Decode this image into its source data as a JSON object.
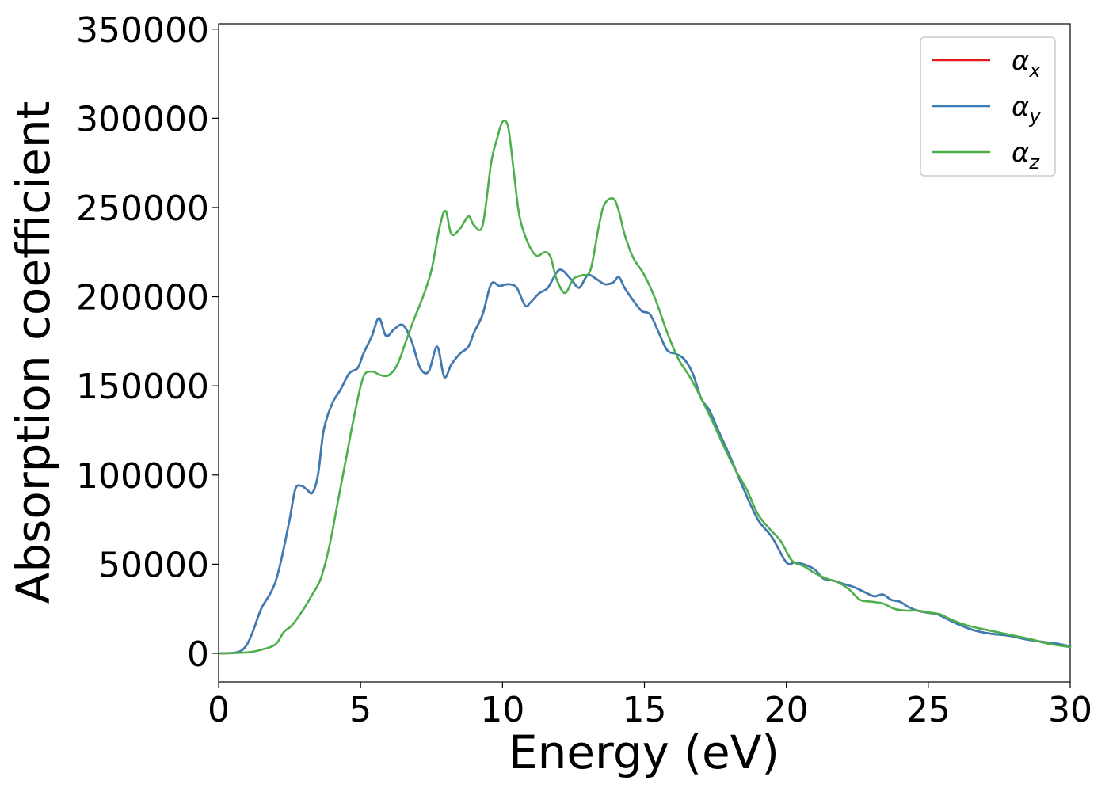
{
  "chart_data": {
    "type": "line",
    "title": "",
    "xlabel": "Energy (eV)",
    "ylabel": "Absorption coefficient",
    "xlim": [
      0,
      30
    ],
    "ylim": [
      -16000,
      353000
    ],
    "xticks": [
      0,
      5,
      10,
      15,
      20,
      25,
      30
    ],
    "yticks": [
      0,
      50000,
      100000,
      150000,
      200000,
      250000,
      300000,
      350000
    ],
    "grid": false,
    "legend_position": "top-right",
    "series": [
      {
        "name": "α",
        "subscript": "x",
        "color": "#e41a1c",
        "x": [
          0,
          0.5,
          0.8,
          1.0,
          1.2,
          1.5,
          1.8,
          2.0,
          2.2,
          2.5,
          2.7,
          2.9,
          3.1,
          3.3,
          3.5,
          3.7,
          4.0,
          4.3,
          4.6,
          4.9,
          5.1,
          5.4,
          5.65,
          5.9,
          6.2,
          6.5,
          6.8,
          7.1,
          7.4,
          7.7,
          7.95,
          8.2,
          8.5,
          8.8,
          9.0,
          9.3,
          9.6,
          9.9,
          10.2,
          10.5,
          10.8,
          11.0,
          11.3,
          11.6,
          12.0,
          12.4,
          12.7,
          13.0,
          13.3,
          13.6,
          13.9,
          14.1,
          14.3,
          14.6,
          14.9,
          15.2,
          15.5,
          15.8,
          16.1,
          16.4,
          16.7,
          17.0,
          17.3,
          17.6,
          18.0,
          18.5,
          19.0,
          19.5,
          20.0,
          20.3,
          20.6,
          21.0,
          21.3,
          21.6,
          22.0,
          22.4,
          22.8,
          23.1,
          23.4,
          23.7,
          24.0,
          24.3,
          24.6,
          24.9,
          25.3,
          25.7,
          26.1,
          26.6,
          27.2,
          27.8,
          28.4,
          29.0,
          29.5,
          30.0
        ],
        "values": [
          0,
          200,
          1500,
          5000,
          12000,
          25000,
          33000,
          40000,
          52000,
          75000,
          92000,
          94000,
          92000,
          90000,
          100000,
          125000,
          140000,
          148000,
          157000,
          160000,
          168000,
          178000,
          188000,
          178000,
          182000,
          184000,
          175000,
          160000,
          158000,
          172000,
          155000,
          162000,
          168000,
          172000,
          180000,
          190000,
          207000,
          206000,
          207000,
          205000,
          195000,
          197000,
          202000,
          205000,
          215000,
          210000,
          205000,
          212000,
          210000,
          207000,
          208000,
          211000,
          205000,
          198000,
          192000,
          190000,
          180000,
          170000,
          168000,
          165000,
          157000,
          143000,
          136000,
          125000,
          111000,
          92000,
          75000,
          65000,
          51000,
          51000,
          50000,
          47000,
          42000,
          41000,
          39000,
          37000,
          34000,
          32000,
          33000,
          30000,
          29000,
          26000,
          24000,
          23000,
          22000,
          19000,
          16000,
          13000,
          11000,
          10000,
          8000,
          6500,
          5500,
          4000
        ]
      },
      {
        "name": "α",
        "subscript": "y",
        "color": "#377eb8",
        "x": [
          0,
          0.5,
          0.8,
          1.0,
          1.2,
          1.5,
          1.8,
          2.0,
          2.2,
          2.5,
          2.7,
          2.9,
          3.1,
          3.3,
          3.5,
          3.7,
          4.0,
          4.3,
          4.6,
          4.9,
          5.1,
          5.4,
          5.65,
          5.9,
          6.2,
          6.5,
          6.8,
          7.1,
          7.4,
          7.7,
          7.95,
          8.2,
          8.5,
          8.8,
          9.0,
          9.3,
          9.6,
          9.9,
          10.2,
          10.5,
          10.8,
          11.0,
          11.3,
          11.6,
          12.0,
          12.4,
          12.7,
          13.0,
          13.3,
          13.6,
          13.9,
          14.1,
          14.3,
          14.6,
          14.9,
          15.2,
          15.5,
          15.8,
          16.1,
          16.4,
          16.7,
          17.0,
          17.3,
          17.6,
          18.0,
          18.5,
          19.0,
          19.5,
          20.0,
          20.3,
          20.6,
          21.0,
          21.3,
          21.6,
          22.0,
          22.4,
          22.8,
          23.1,
          23.4,
          23.7,
          24.0,
          24.3,
          24.6,
          24.9,
          25.3,
          25.7,
          26.1,
          26.6,
          27.2,
          27.8,
          28.4,
          29.0,
          29.5,
          30.0
        ],
        "values": [
          0,
          200,
          1500,
          5000,
          12000,
          25000,
          33000,
          40000,
          52000,
          75000,
          92000,
          94000,
          92000,
          90000,
          100000,
          125000,
          140000,
          148000,
          157000,
          160000,
          168000,
          178000,
          188000,
          178000,
          182000,
          184000,
          175000,
          160000,
          158000,
          172000,
          155000,
          162000,
          168000,
          172000,
          180000,
          190000,
          207000,
          206000,
          207000,
          205000,
          195000,
          197000,
          202000,
          205000,
          215000,
          210000,
          205000,
          212000,
          210000,
          207000,
          208000,
          211000,
          205000,
          198000,
          192000,
          190000,
          180000,
          170000,
          168000,
          165000,
          157000,
          143000,
          136000,
          125000,
          111000,
          92000,
          75000,
          65000,
          51000,
          51000,
          50000,
          47000,
          42000,
          41000,
          39000,
          37000,
          34000,
          32000,
          33000,
          30000,
          29000,
          26000,
          24000,
          23000,
          22000,
          19000,
          16000,
          13000,
          11000,
          10000,
          8000,
          6500,
          5500,
          4000
        ]
      },
      {
        "name": "α",
        "subscript": "z",
        "color": "#4daf4a",
        "x": [
          0,
          1.0,
          1.5,
          2.0,
          2.3,
          2.6,
          3.0,
          3.3,
          3.6,
          3.9,
          4.2,
          4.5,
          4.8,
          5.1,
          5.4,
          5.7,
          6.0,
          6.3,
          6.6,
          6.9,
          7.2,
          7.5,
          7.8,
          8.0,
          8.2,
          8.5,
          8.8,
          9.0,
          9.3,
          9.6,
          9.8,
          10.0,
          10.2,
          10.4,
          10.6,
          10.9,
          11.2,
          11.5,
          11.7,
          11.9,
          12.2,
          12.5,
          12.8,
          13.1,
          13.4,
          13.6,
          13.9,
          14.1,
          14.3,
          14.6,
          15.0,
          15.4,
          15.8,
          16.2,
          16.6,
          17.0,
          17.4,
          17.8,
          18.2,
          18.6,
          19.0,
          19.4,
          19.8,
          20.2,
          20.6,
          21.0,
          21.4,
          21.8,
          22.2,
          22.6,
          23.0,
          23.4,
          23.8,
          24.2,
          24.6,
          25.0,
          25.4,
          25.8,
          26.3,
          26.8,
          27.4,
          28.0,
          28.6,
          29.2,
          30.0
        ],
        "values": [
          0,
          500,
          2000,
          5000,
          12000,
          16000,
          25000,
          33000,
          42000,
          60000,
          85000,
          110000,
          135000,
          155000,
          158000,
          156000,
          156000,
          162000,
          175000,
          188000,
          200000,
          215000,
          240000,
          248000,
          235000,
          238000,
          245000,
          240000,
          240000,
          275000,
          288000,
          298000,
          295000,
          270000,
          245000,
          230000,
          223000,
          225000,
          222000,
          210000,
          202000,
          210000,
          212000,
          215000,
          240000,
          252000,
          255000,
          248000,
          235000,
          222000,
          212000,
          198000,
          180000,
          165000,
          155000,
          143000,
          130000,
          116000,
          103000,
          92000,
          78000,
          70000,
          63000,
          52000,
          49000,
          45000,
          42000,
          40000,
          36000,
          30000,
          29000,
          28000,
          25000,
          24000,
          24000,
          23000,
          22000,
          19000,
          16000,
          14000,
          12000,
          10000,
          8000,
          5500,
          3500
        ]
      }
    ]
  }
}
